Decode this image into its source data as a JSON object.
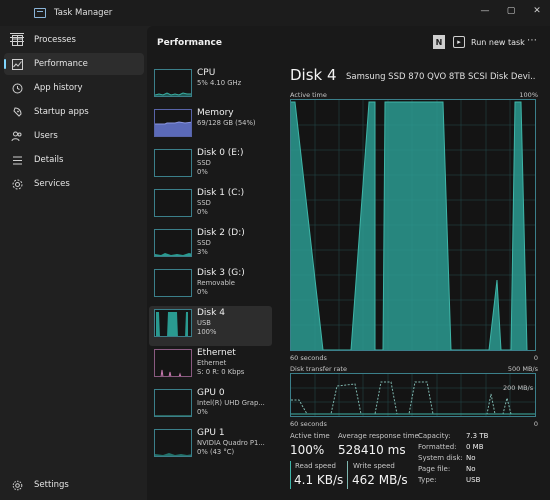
{
  "window": {
    "title": "Task Manager",
    "minimize": "—",
    "maximize": "▢",
    "close": "✕"
  },
  "sidebar": {
    "items": [
      {
        "label": "Processes",
        "icon": "grid-icon"
      },
      {
        "label": "Performance",
        "icon": "performance-icon",
        "active": true
      },
      {
        "label": "App history",
        "icon": "history-icon"
      },
      {
        "label": "Startup apps",
        "icon": "startup-icon"
      },
      {
        "label": "Users",
        "icon": "users-icon"
      },
      {
        "label": "Details",
        "icon": "details-icon"
      },
      {
        "label": "Services",
        "icon": "services-icon"
      }
    ],
    "settings_label": "Settings"
  },
  "header": {
    "title": "Performance",
    "badge": "N",
    "run_new_task": "Run new task",
    "more": "⋯"
  },
  "devices": [
    {
      "name": "CPU",
      "sub1": "5% 4.10 GHz",
      "sub2": ""
    },
    {
      "name": "Memory",
      "sub1": "69/128 GB (54%)",
      "sub2": ""
    },
    {
      "name": "Disk 0 (E:)",
      "sub1": "SSD",
      "sub2": "0%"
    },
    {
      "name": "Disk 1 (C:)",
      "sub1": "SSD",
      "sub2": "0%"
    },
    {
      "name": "Disk 2 (D:)",
      "sub1": "SSD",
      "sub2": "3%"
    },
    {
      "name": "Disk 3 (G:)",
      "sub1": "Removable",
      "sub2": "0%"
    },
    {
      "name": "Disk 4",
      "sub1": "USB",
      "sub2": "100%",
      "active": true
    },
    {
      "name": "Ethernet",
      "sub1": "Ethernet",
      "sub2": "S: 0 R: 0 Kbps"
    },
    {
      "name": "GPU 0",
      "sub1": "Intel(R) UHD Grap...",
      "sub2": "0%"
    },
    {
      "name": "GPU 1",
      "sub1": "NVIDIA Quadro P1...",
      "sub2": "0% (43 °C)"
    }
  ],
  "detail": {
    "title": "Disk 4",
    "model": "Samsung SSD 870 QVO 8TB SCSI Disk Devi...",
    "active_time_label": "Active time",
    "active_time_max": "100%",
    "graph1_xlabel": "60 seconds",
    "graph1_zero": "0",
    "transfer_label": "Disk transfer rate",
    "transfer_max": "500 MB/s",
    "transfer_mid": "200 MB/s",
    "graph2_xlabel": "60 seconds",
    "graph2_zero": "0",
    "stats": {
      "active_time_label": "Active time",
      "active_time_value": "100%",
      "response_label": "Average response time",
      "response_value": "528410 ms",
      "read_label": "Read speed",
      "read_value": "4.1 KB/s",
      "write_label": "Write speed",
      "write_value": "462 MB/s"
    },
    "properties": [
      {
        "key": "Capacity:",
        "value": "7.3 TB"
      },
      {
        "key": "Formatted:",
        "value": "0 MB"
      },
      {
        "key": "System disk:",
        "value": "No"
      },
      {
        "key": "Page file:",
        "value": "No"
      },
      {
        "key": "Type:",
        "value": "USB"
      }
    ]
  },
  "colors": {
    "accent": "#3fb5a8",
    "accent_fill": "#2a9a90",
    "read": "#3fb5a8",
    "write": "#7fb8b0",
    "memory": "#6a78c8",
    "ethernet": "#c87ab0"
  }
}
